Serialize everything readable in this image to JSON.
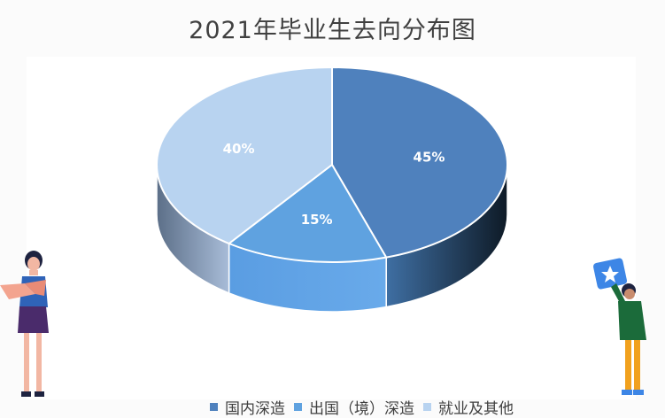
{
  "chart_data": {
    "type": "pie",
    "title": "2021年毕业生去向分布图",
    "style": "3d",
    "categories": [
      "国内深造",
      "出国（境）深造",
      "就业及其他"
    ],
    "values": [
      45,
      15,
      40
    ],
    "labels": [
      "45%",
      "15%",
      "40%"
    ],
    "colors": [
      "#4f81bd",
      "#5fa2e0",
      "#b8d3f0"
    ],
    "side_colors": [
      "#2f5580",
      "#5b9be0",
      "#8fa6c6"
    ],
    "legend_position": "bottom"
  },
  "illustrations": [
    {
      "name": "woman-reading-illustration"
    },
    {
      "name": "man-holding-star-card-illustration"
    }
  ]
}
